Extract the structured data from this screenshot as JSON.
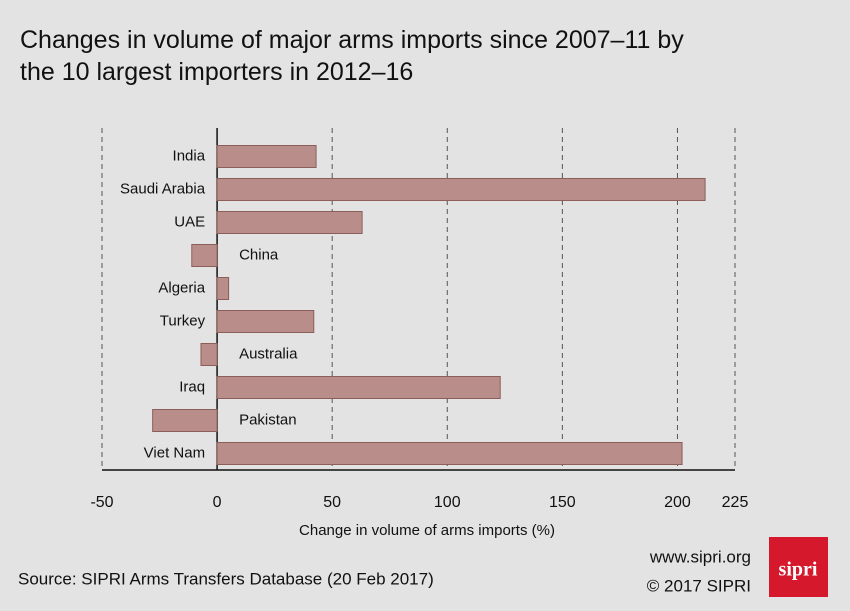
{
  "chart_data": {
    "type": "bar",
    "orientation": "horizontal",
    "title": "Changes in volume of major arms imports since 2007–11 by the 10 largest importers in 2012–16",
    "xlabel": "Change in volume of arms imports (%)",
    "categories": [
      "India",
      "Saudi Arabia",
      "UAE",
      "China",
      "Algeria",
      "Turkey",
      "Australia",
      "Iraq",
      "Pakistan",
      "Viet Nam"
    ],
    "values": [
      43,
      212,
      63,
      -11,
      5,
      42,
      -7,
      123,
      -28,
      202
    ],
    "color": "#b98e8a",
    "xlim": [
      -50,
      225
    ],
    "xticks": [
      -50,
      0,
      50,
      100,
      150,
      200,
      225
    ],
    "grid": true
  },
  "footer": {
    "source": "Source: SIPRI Arms Transfers Database (20 Feb 2017)",
    "website": "www.sipri.org",
    "copyright": "© 2017 SIPRI",
    "logo": "sipri"
  }
}
